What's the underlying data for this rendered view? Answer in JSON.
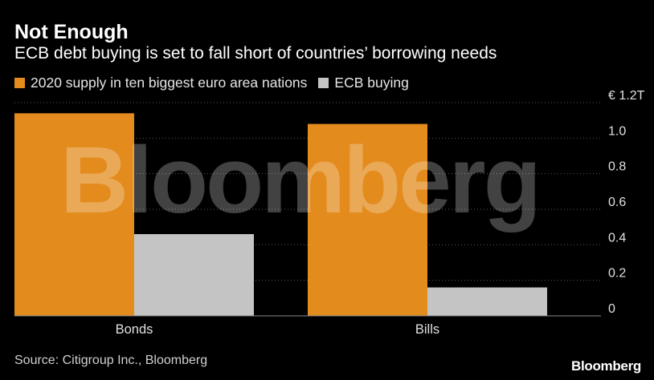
{
  "title": "Not Enough",
  "subtitle": "ECB debt buying is set to fall short of countries’ borrowing needs",
  "source": "Source: Citigroup Inc., Bloomberg",
  "brand": "Bloomberg",
  "watermark": "Bloomberg",
  "colors": {
    "supply": "#e38b1d",
    "ecb": "#c4c4c4",
    "grid": "#5a5a5a",
    "axis_text": "#e0e0e0",
    "background": "#000000"
  },
  "chart_data": {
    "type": "bar",
    "categories": [
      "Bonds",
      "Bills"
    ],
    "series": [
      {
        "name": "2020 supply in ten biggest euro area nations",
        "values": [
          1.14,
          1.08
        ]
      },
      {
        "name": "ECB buying",
        "values": [
          0.46,
          0.16
        ]
      }
    ],
    "ylim": [
      0,
      1.2
    ],
    "yticks": [
      0,
      0.2,
      0.4,
      0.6,
      0.8,
      1.0,
      1.2
    ],
    "ytick_labels": [
      "0",
      "0.2",
      "0.4",
      "0.6",
      "0.8",
      "1.0",
      "€ 1.2T"
    ],
    "grid": true,
    "grid_style": "dotted",
    "legend": "top-left"
  }
}
